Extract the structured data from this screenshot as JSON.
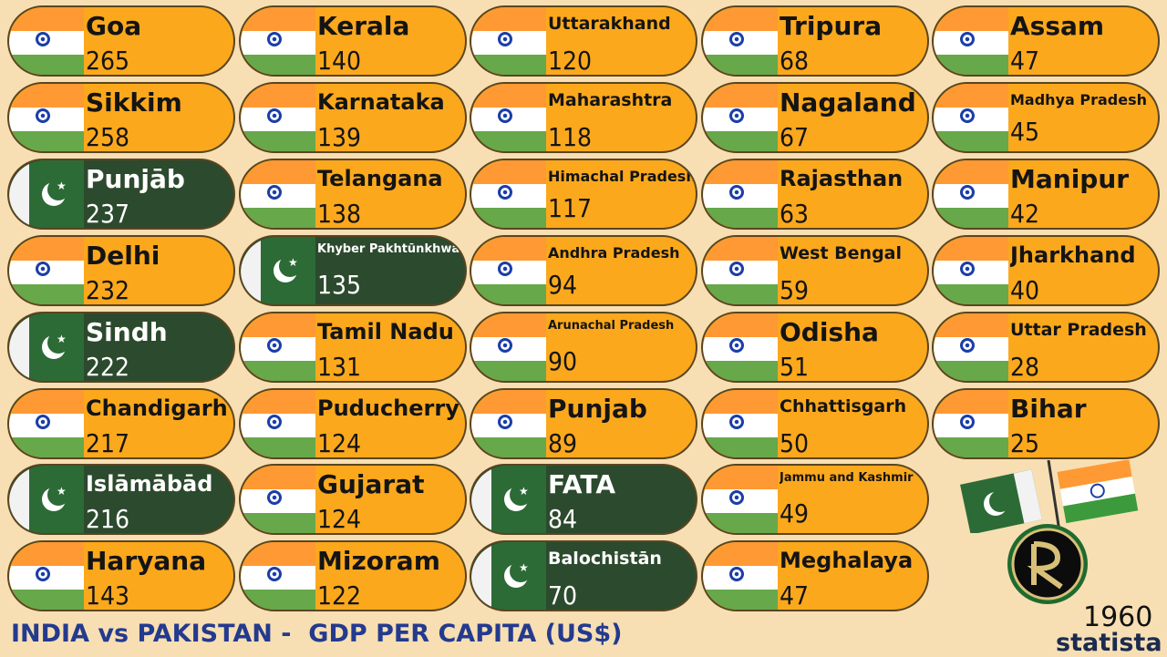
{
  "chart_data": {
    "type": "table",
    "title": "INDIA vs PAKISTAN -  GDP PER CAPITA (US$)",
    "year": "1960",
    "brand": "statista",
    "colors": {
      "india": "#fba81d",
      "pakistan": "#2c4a2d"
    },
    "items": [
      {
        "name": "Goa",
        "value": 265,
        "country": "india"
      },
      {
        "name": "Sikkim",
        "value": 258,
        "country": "india"
      },
      {
        "name": "Punjāb",
        "value": 237,
        "country": "pakistan"
      },
      {
        "name": "Delhi",
        "value": 232,
        "country": "india"
      },
      {
        "name": "Sindh",
        "value": 222,
        "country": "pakistan"
      },
      {
        "name": "Chandigarh",
        "value": 217,
        "country": "india"
      },
      {
        "name": "Islāmābād",
        "value": 216,
        "country": "pakistan"
      },
      {
        "name": "Haryana",
        "value": 143,
        "country": "india"
      },
      {
        "name": "Kerala",
        "value": 140,
        "country": "india"
      },
      {
        "name": "Karnataka",
        "value": 139,
        "country": "india"
      },
      {
        "name": "Telangana",
        "value": 138,
        "country": "india"
      },
      {
        "name": "Khyber Pakhtūnkhwa",
        "value": 135,
        "country": "pakistan"
      },
      {
        "name": "Tamil Nadu",
        "value": 131,
        "country": "india"
      },
      {
        "name": "Puducherry",
        "value": 124,
        "country": "india"
      },
      {
        "name": "Gujarat",
        "value": 124,
        "country": "india"
      },
      {
        "name": "Mizoram",
        "value": 122,
        "country": "india"
      },
      {
        "name": "Uttarakhand",
        "value": 120,
        "country": "india"
      },
      {
        "name": "Maharashtra",
        "value": 118,
        "country": "india"
      },
      {
        "name": "Himachal Pradesh",
        "value": 117,
        "country": "india"
      },
      {
        "name": "Andhra Pradesh",
        "value": 94,
        "country": "india"
      },
      {
        "name": "Arunachal Pradesh",
        "value": 90,
        "country": "india"
      },
      {
        "name": "Punjab",
        "value": 89,
        "country": "india"
      },
      {
        "name": "FATA",
        "value": 84,
        "country": "pakistan"
      },
      {
        "name": "Balochistān",
        "value": 70,
        "country": "pakistan"
      },
      {
        "name": "Tripura",
        "value": 68,
        "country": "india"
      },
      {
        "name": "Nagaland",
        "value": 67,
        "country": "india"
      },
      {
        "name": "Rajasthan",
        "value": 63,
        "country": "india"
      },
      {
        "name": "West Bengal",
        "value": 59,
        "country": "india"
      },
      {
        "name": "Odisha",
        "value": 51,
        "country": "india"
      },
      {
        "name": "Chhattisgarh",
        "value": 50,
        "country": "india"
      },
      {
        "name": "Jammu and Kashmir",
        "value": 49,
        "country": "india"
      },
      {
        "name": "Meghalaya",
        "value": 47,
        "country": "india"
      },
      {
        "name": "Assam",
        "value": 47,
        "country": "india"
      },
      {
        "name": "Madhya Pradesh",
        "value": 45,
        "country": "india"
      },
      {
        "name": "Manipur",
        "value": 42,
        "country": "india"
      },
      {
        "name": "Jharkhand",
        "value": 40,
        "country": "india"
      },
      {
        "name": "Uttar Pradesh",
        "value": 28,
        "country": "india"
      },
      {
        "name": "Bihar",
        "value": 25,
        "country": "india"
      }
    ]
  }
}
